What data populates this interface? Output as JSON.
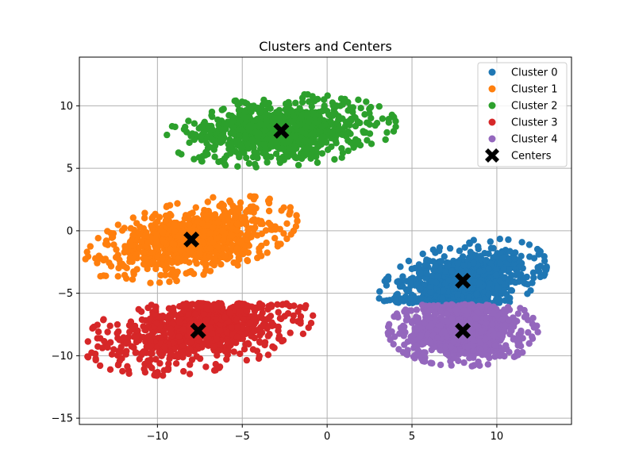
{
  "chart_data": {
    "type": "scatter",
    "title": "Clusters and Centers",
    "xlabel": "",
    "ylabel": "",
    "xlim": [
      -14.6,
      14.4
    ],
    "ylim": [
      -15.5,
      13.9
    ],
    "xticks": [
      -10,
      -5,
      0,
      5,
      10
    ],
    "yticks": [
      -15,
      -10,
      -5,
      0,
      5,
      10
    ],
    "xtick_labels": [
      "−10",
      "−5",
      "0",
      "5",
      "10"
    ],
    "ytick_labels": [
      "−15",
      "−10",
      "−5",
      "0",
      "5",
      "10"
    ],
    "grid": true,
    "legend_position": "top-right",
    "series": [
      {
        "name": "Cluster 0",
        "color": "#1f77b4",
        "center": [
          8,
          -4
        ],
        "spread": [
          1.9,
          1.2
        ],
        "tilt": 0.25,
        "clip": {
          "ymin": -5.8
        }
      },
      {
        "name": "Cluster 1",
        "color": "#ff7f0e",
        "center": [
          -8,
          -0.7
        ],
        "spread": [
          2.4,
          1.2
        ],
        "tilt": 0.25
      },
      {
        "name": "Cluster 2",
        "color": "#2ca02c",
        "center": [
          -2.7,
          8
        ],
        "spread": [
          2.6,
          1.1
        ],
        "tilt": 0.08
      },
      {
        "name": "Cluster 3",
        "color": "#d62728",
        "center": [
          -7.6,
          -8
        ],
        "spread": [
          2.6,
          1.3
        ],
        "tilt": 0.18,
        "clip": {
          "ymax": -5.8
        }
      },
      {
        "name": "Cluster 4",
        "color": "#9467bd",
        "center": [
          8,
          -8
        ],
        "spread": [
          1.7,
          1.1
        ],
        "tilt": 0.0,
        "clip": {
          "ymax": -5.9
        }
      }
    ],
    "centers": {
      "name": "Centers",
      "color": "#000000",
      "points": [
        [
          8,
          -4
        ],
        [
          -8,
          -0.7
        ],
        [
          -2.7,
          8
        ],
        [
          -7.6,
          -8
        ],
        [
          8,
          -8
        ]
      ]
    }
  }
}
